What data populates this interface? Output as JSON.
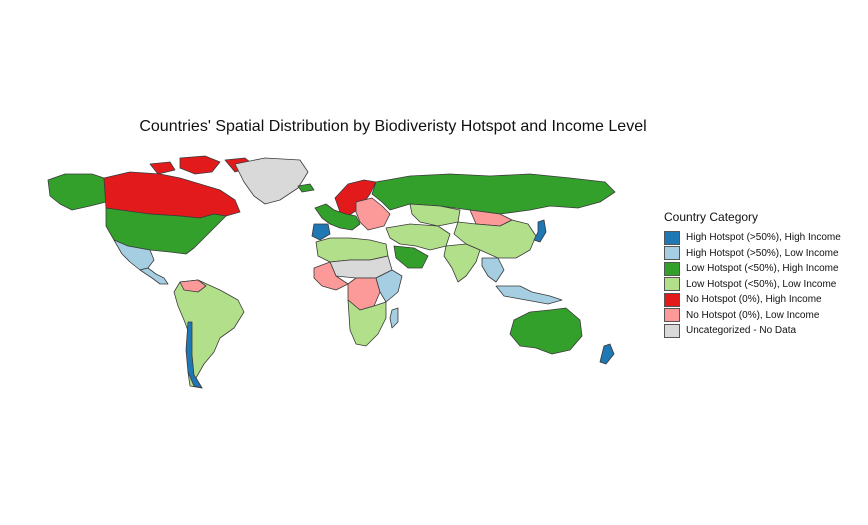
{
  "title": "Countries' Spatial Distribution by Biodiveristy Hotspot and Income Level",
  "legend": {
    "title": "Country Category",
    "items": [
      {
        "label": "High Hotspot (>50%), High Income",
        "color": "#1f78b4"
      },
      {
        "label": "High Hotspot (>50%), Low Income",
        "color": "#a6cee3"
      },
      {
        "label": "Low Hotspot (<50%), High Income",
        "color": "#33a02c"
      },
      {
        "label": "Low Hotspot (<50%), Low Income",
        "color": "#b2df8a"
      },
      {
        "label": "No Hotspot (0%), High Income",
        "color": "#e31a1c"
      },
      {
        "label": "No Hotspot (0%), Low Income",
        "color": "#fb9a99"
      },
      {
        "label": "Uncategorized - No Data",
        "color": "#d9d9d9"
      }
    ]
  },
  "regions": [
    {
      "name": "greenland",
      "color": "#d9d9d9"
    },
    {
      "name": "canada",
      "color": "#e31a1c"
    },
    {
      "name": "alaska",
      "color": "#33a02c"
    },
    {
      "name": "usa",
      "color": "#33a02c"
    },
    {
      "name": "mexico",
      "color": "#a6cee3"
    },
    {
      "name": "central-america",
      "color": "#a6cee3"
    },
    {
      "name": "south-america",
      "color": "#b2df8a"
    },
    {
      "name": "venezuela",
      "color": "#fb9a99"
    },
    {
      "name": "chile",
      "color": "#1f78b4"
    },
    {
      "name": "iceland",
      "color": "#33a02c"
    },
    {
      "name": "scandinavia",
      "color": "#e31a1c"
    },
    {
      "name": "western-europe",
      "color": "#33a02c"
    },
    {
      "name": "iberia",
      "color": "#1f78b4"
    },
    {
      "name": "eastern-europe",
      "color": "#fb9a99"
    },
    {
      "name": "russia",
      "color": "#33a02c"
    },
    {
      "name": "kazakhstan",
      "color": "#b2df8a"
    },
    {
      "name": "mongolia",
      "color": "#fb9a99"
    },
    {
      "name": "china",
      "color": "#b2df8a"
    },
    {
      "name": "middle-east",
      "color": "#b2df8a"
    },
    {
      "name": "saudi-arabia",
      "color": "#33a02c"
    },
    {
      "name": "india",
      "color": "#b2df8a"
    },
    {
      "name": "southeast-asia",
      "color": "#a6cee3"
    },
    {
      "name": "japan",
      "color": "#1f78b4"
    },
    {
      "name": "north-africa",
      "color": "#b2df8a"
    },
    {
      "name": "sahel",
      "color": "#d9d9d9"
    },
    {
      "name": "west-africa",
      "color": "#fb9a99"
    },
    {
      "name": "central-africa",
      "color": "#fb9a99"
    },
    {
      "name": "east-africa",
      "color": "#a6cee3"
    },
    {
      "name": "southern-africa",
      "color": "#b2df8a"
    },
    {
      "name": "madagascar",
      "color": "#a6cee3"
    },
    {
      "name": "indonesia",
      "color": "#a6cee3"
    },
    {
      "name": "australia",
      "color": "#33a02c"
    },
    {
      "name": "new-zealand",
      "color": "#1f78b4"
    },
    {
      "name": "arctic-islands",
      "color": "#e31a1c"
    }
  ]
}
